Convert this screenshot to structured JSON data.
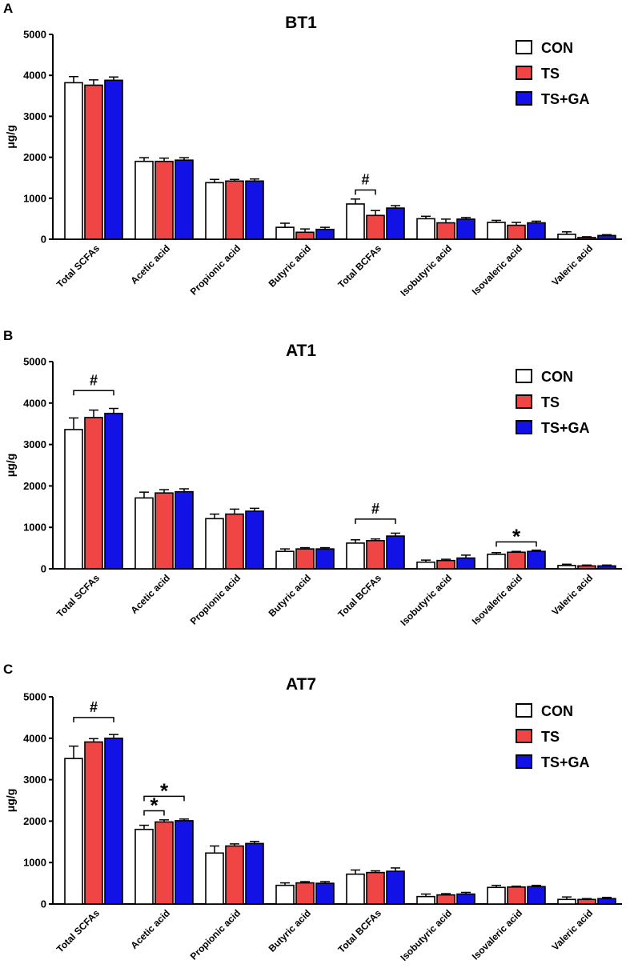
{
  "chart_data": [
    {
      "type": "bar",
      "panel_label": "A",
      "title": "BT1",
      "ylabel": "μg/g",
      "xlabel": "",
      "ylim": [
        0,
        5000
      ],
      "yticks": [
        0,
        1000,
        2000,
        3000,
        4000,
        5000
      ],
      "categories": [
        "Total SCFAs",
        "Acetic acid",
        "Propionic acid",
        "Butyric acid",
        "Total BCFAs",
        "Isobutyric acid",
        "Isovaleric acid",
        "Valeric acid"
      ],
      "series": [
        {
          "name": "CON",
          "color": "#ffffff",
          "values": [
            3820,
            1900,
            1380,
            290,
            860,
            500,
            410,
            120
          ],
          "errors": [
            150,
            90,
            80,
            100,
            120,
            60,
            50,
            60
          ]
        },
        {
          "name": "TS",
          "color": "#f04545",
          "values": [
            3760,
            1900,
            1420,
            170,
            580,
            400,
            340,
            40
          ],
          "errors": [
            130,
            80,
            40,
            80,
            120,
            90,
            70,
            20
          ]
        },
        {
          "name": "TS+GA",
          "color": "#1212e6",
          "values": [
            3880,
            1930,
            1420,
            240,
            760,
            490,
            400,
            90
          ],
          "errors": [
            80,
            60,
            50,
            50,
            60,
            40,
            40,
            20
          ]
        }
      ],
      "annotations": [
        {
          "text": "#",
          "category": 4,
          "from_series": 0,
          "to_series": 1,
          "y": 1200
        }
      ],
      "legend_position": "top-right"
    },
    {
      "type": "bar",
      "panel_label": "B",
      "title": "AT1",
      "ylabel": "μg/g",
      "xlabel": "",
      "ylim": [
        0,
        5000
      ],
      "yticks": [
        0,
        1000,
        2000,
        3000,
        4000,
        5000
      ],
      "categories": [
        "Total SCFAs",
        "Acetic acid",
        "Propionic acid",
        "Butyric acid",
        "Total BCFAs",
        "Isobutyric acid",
        "Isovaleric acid",
        "Valeric acid"
      ],
      "series": [
        {
          "name": "CON",
          "color": "#ffffff",
          "values": [
            3360,
            1710,
            1210,
            420,
            620,
            160,
            350,
            80
          ],
          "errors": [
            280,
            140,
            110,
            60,
            80,
            50,
            40,
            30
          ]
        },
        {
          "name": "TS",
          "color": "#f04545",
          "values": [
            3650,
            1830,
            1320,
            480,
            680,
            200,
            400,
            70
          ],
          "errors": [
            180,
            80,
            120,
            30,
            40,
            30,
            20,
            20
          ]
        },
        {
          "name": "TS+GA",
          "color": "#1212e6",
          "values": [
            3750,
            1860,
            1390,
            480,
            790,
            260,
            420,
            70
          ],
          "errors": [
            120,
            70,
            70,
            30,
            70,
            70,
            30,
            20
          ]
        }
      ],
      "annotations": [
        {
          "text": "#",
          "category": 0,
          "from_series": 0,
          "to_series": 2,
          "y": 4300
        },
        {
          "text": "#",
          "category": 4,
          "from_series": 0,
          "to_series": 2,
          "y": 1200
        },
        {
          "text": "*",
          "category": 6,
          "from_series": 0,
          "to_series": 2,
          "y": 650
        }
      ],
      "legend_position": "top-right"
    },
    {
      "type": "bar",
      "panel_label": "C",
      "title": "AT7",
      "ylabel": "μg/g",
      "xlabel": "",
      "ylim": [
        0,
        5000
      ],
      "yticks": [
        0,
        1000,
        2000,
        3000,
        4000,
        5000
      ],
      "categories": [
        "Total SCFAs",
        "Acetic acid",
        "Propionic acid",
        "Butyric acid",
        "Total BCFAs",
        "Isobutyric acid",
        "Isovaleric acid",
        "Valeric acid"
      ],
      "series": [
        {
          "name": "CON",
          "color": "#ffffff",
          "values": [
            3510,
            1800,
            1230,
            450,
            720,
            180,
            400,
            110
          ],
          "errors": [
            300,
            100,
            170,
            60,
            100,
            60,
            50,
            60
          ]
        },
        {
          "name": "TS",
          "color": "#f04545",
          "values": [
            3910,
            1980,
            1400,
            510,
            760,
            220,
            410,
            110
          ],
          "errors": [
            80,
            50,
            50,
            30,
            40,
            30,
            20,
            20
          ]
        },
        {
          "name": "TS+GA",
          "color": "#1212e6",
          "values": [
            4000,
            2010,
            1460,
            500,
            790,
            240,
            420,
            130
          ],
          "errors": [
            90,
            40,
            50,
            40,
            80,
            40,
            30,
            30
          ]
        }
      ],
      "annotations": [
        {
          "text": "#",
          "category": 0,
          "from_series": 0,
          "to_series": 2,
          "y": 4500
        },
        {
          "text": "*",
          "category": 1,
          "from_series": 0,
          "to_series": 2,
          "y": 2600
        },
        {
          "text": "*",
          "category": 1,
          "from_series": 0,
          "to_series": 1,
          "y": 2250
        }
      ],
      "legend_position": "top-right"
    }
  ]
}
